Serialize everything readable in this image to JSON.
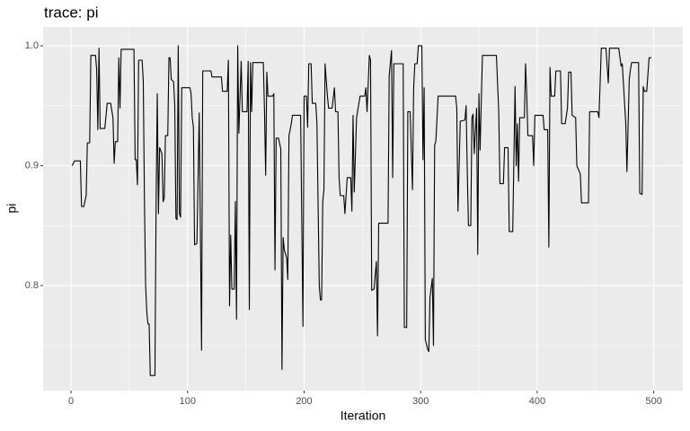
{
  "chart_data": {
    "type": "line",
    "title": "trace: pi",
    "x_label": "Iteration",
    "y_label": "pi",
    "xlim": [
      -23.95,
      524.95
    ],
    "xticks": [
      0,
      100,
      200,
      300,
      400,
      500
    ],
    "xminor": [
      50,
      150,
      250,
      350,
      450
    ],
    "ylim": [
      0.7124,
      1.0157
    ],
    "yticks": [
      0.8,
      0.9,
      {
        "value": 1.0,
        "label": "1.0"
      }
    ],
    "yminor": [
      0.75,
      0.85,
      0.95
    ],
    "grid": true,
    "color": "#000000",
    "x": [
      1,
      3,
      8,
      9,
      11,
      13,
      14,
      16,
      17,
      21,
      22,
      23,
      24,
      25,
      29,
      31,
      34,
      36,
      37,
      38,
      40,
      41,
      42,
      43,
      54,
      55,
      56,
      57,
      58,
      61,
      62,
      63,
      64,
      65,
      66,
      67,
      68,
      72,
      73,
      74,
      75,
      76,
      78,
      79,
      80,
      81,
      83,
      84,
      85,
      86,
      88,
      89,
      90,
      91,
      92,
      93,
      94,
      95,
      102,
      103,
      104,
      105,
      106,
      108,
      110,
      112,
      113,
      120,
      121,
      129,
      130,
      134,
      135,
      136,
      137,
      138,
      140,
      141,
      142,
      143,
      144,
      146,
      147,
      151,
      152,
      153,
      154,
      155,
      156,
      165,
      166,
      167,
      168,
      169,
      173,
      174,
      175,
      176,
      178,
      180,
      181,
      182,
      183,
      185,
      186,
      187,
      189,
      190,
      197,
      199,
      200,
      202,
      203,
      204,
      206,
      207,
      210,
      211,
      213,
      214,
      215,
      216,
      217,
      218,
      220,
      221,
      224,
      226,
      227,
      229,
      230,
      231,
      234,
      235,
      236,
      237,
      240,
      241,
      242,
      243,
      245,
      248,
      252,
      253,
      254,
      256,
      257,
      258,
      260,
      262,
      263,
      264,
      272,
      273,
      275,
      276,
      277,
      285,
      286,
      288,
      289,
      291,
      293,
      294,
      295,
      297,
      298,
      301,
      302,
      303,
      304,
      306,
      307,
      308,
      310,
      311,
      312,
      313,
      315,
      330,
      331,
      332,
      334,
      338,
      339,
      340,
      341,
      343,
      344,
      345,
      346,
      348,
      349,
      350,
      351,
      353,
      365,
      367,
      368,
      371,
      372,
      375,
      376,
      379,
      381,
      382,
      383,
      384,
      385,
      389,
      390,
      391,
      392,
      396,
      397,
      398,
      405,
      406,
      409,
      410,
      411,
      412,
      415,
      416,
      420,
      421,
      424,
      426,
      427,
      429,
      430,
      433,
      434,
      437,
      438,
      444,
      445,
      452,
      453,
      455,
      459,
      461,
      462,
      470,
      472,
      473,
      476,
      477,
      479,
      480,
      481,
      487,
      488,
      490,
      491,
      492,
      494,
      496,
      498
    ],
    "values": [
      0.9,
      0.904,
      0.904,
      0.866,
      0.866,
      0.875,
      0.919,
      0.919,
      0.992,
      0.992,
      0.98,
      0.93,
      0.998,
      0.931,
      0.931,
      0.952,
      0.952,
      0.94,
      0.902,
      0.92,
      0.92,
      0.99,
      0.948,
      0.997,
      0.997,
      0.905,
      0.905,
      0.884,
      0.988,
      0.988,
      0.97,
      0.87,
      0.8,
      0.778,
      0.768,
      0.768,
      0.725,
      0.725,
      0.87,
      0.96,
      0.86,
      0.915,
      0.91,
      0.87,
      0.873,
      0.925,
      0.925,
      0.99,
      0.99,
      0.972,
      0.97,
      0.95,
      0.856,
      0.855,
      1.0,
      0.86,
      0.857,
      0.965,
      0.965,
      0.96,
      0.94,
      0.932,
      0.834,
      0.835,
      0.944,
      0.746,
      0.979,
      0.979,
      0.974,
      0.974,
      0.962,
      0.962,
      0.988,
      0.783,
      0.842,
      0.797,
      0.797,
      0.87,
      0.772,
      1.0,
      0.927,
      0.987,
      0.945,
      0.945,
      0.987,
      0.78,
      0.986,
      0.945,
      0.986,
      0.986,
      0.946,
      0.892,
      0.978,
      0.958,
      0.958,
      0.96,
      0.813,
      0.923,
      0.923,
      0.914,
      0.73,
      0.84,
      0.83,
      0.823,
      0.805,
      0.925,
      0.935,
      0.942,
      0.942,
      0.766,
      0.958,
      0.958,
      0.932,
      0.985,
      0.985,
      0.952,
      0.952,
      0.935,
      0.8,
      0.788,
      0.788,
      0.87,
      0.88,
      0.985,
      0.958,
      0.948,
      0.948,
      0.965,
      0.945,
      0.945,
      0.89,
      0.875,
      0.875,
      0.86,
      0.875,
      0.89,
      0.89,
      0.862,
      0.942,
      0.878,
      0.94,
      0.958,
      0.958,
      0.965,
      0.945,
      0.992,
      0.988,
      0.796,
      0.797,
      0.82,
      0.758,
      0.852,
      0.852,
      0.975,
      0.996,
      0.89,
      0.985,
      0.985,
      0.765,
      0.765,
      0.945,
      0.945,
      0.88,
      0.965,
      0.985,
      0.985,
      1.0,
      1.0,
      0.905,
      0.965,
      0.755,
      0.747,
      0.745,
      0.79,
      0.806,
      0.75,
      0.917,
      0.92,
      0.958,
      0.958,
      0.948,
      0.862,
      0.937,
      0.938,
      0.95,
      0.895,
      0.85,
      0.85,
      0.94,
      0.943,
      0.91,
      0.948,
      0.826,
      0.96,
      0.913,
      0.992,
      0.992,
      0.945,
      0.885,
      0.885,
      0.915,
      0.915,
      0.845,
      0.845,
      0.966,
      0.9,
      0.935,
      0.887,
      0.94,
      0.94,
      0.985,
      0.96,
      0.925,
      0.925,
      0.9,
      0.942,
      0.942,
      0.93,
      0.93,
      0.832,
      0.982,
      0.958,
      0.958,
      0.979,
      0.979,
      0.935,
      0.935,
      0.948,
      0.978,
      0.978,
      0.942,
      0.94,
      0.9,
      0.893,
      0.869,
      0.869,
      0.945,
      0.945,
      0.94,
      0.998,
      0.998,
      0.969,
      0.998,
      0.998,
      0.983,
      0.985,
      0.935,
      0.895,
      0.972,
      0.98,
      0.986,
      0.986,
      0.877,
      0.876,
      0.966,
      0.962,
      0.962,
      0.99,
      0.99
    ]
  }
}
